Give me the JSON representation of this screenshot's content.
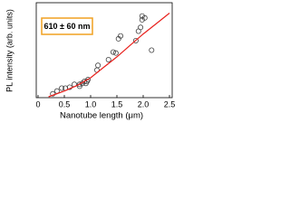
{
  "chart_data": {
    "type": "scatter",
    "annotation": "610 ± 60 nm",
    "x_label": "Nanotube length (μm)",
    "y_label": "PL intensity (arb. units)",
    "xlim": [
      0,
      2.5
    ],
    "ylim": [
      0,
      1
    ],
    "xticks": [
      0,
      0.5,
      {
        "value": 1,
        "label": "1.0"
      },
      1.5,
      {
        "value": 2,
        "label": "2.0"
      },
      2.5
    ],
    "series": [
      {
        "type": "scatter",
        "color": "#444444",
        "x": [
          0.28,
          0.36,
          0.45,
          0.52,
          0.6,
          0.69,
          0.79,
          0.84,
          0.88,
          0.93,
          0.91,
          0.95,
          0.79,
          1.12,
          1.14,
          1.34,
          1.43,
          1.48,
          1.53,
          1.57,
          1.86,
          1.91,
          1.95,
          1.98,
          1.98,
          2.03,
          2.16
        ],
        "values": [
          0.04,
          0.07,
          0.1,
          0.1,
          0.11,
          0.14,
          0.14,
          0.15,
          0.17,
          0.17,
          0.15,
          0.19,
          0.12,
          0.29,
          0.34,
          0.4,
          0.48,
          0.47,
          0.62,
          0.65,
          0.6,
          0.7,
          0.74,
          0.82,
          0.86,
          0.84,
          0.5
        ]
      },
      {
        "type": "line",
        "color": "#e8201c",
        "x": [
          0.2,
          0.5,
          0.75,
          1.0,
          1.25,
          1.5,
          1.75,
          2.0,
          2.25,
          2.5
        ],
        "values": [
          0.01,
          0.07,
          0.13,
          0.21,
          0.32,
          0.43,
          0.55,
          0.67,
          0.78,
          0.89
        ]
      }
    ]
  }
}
